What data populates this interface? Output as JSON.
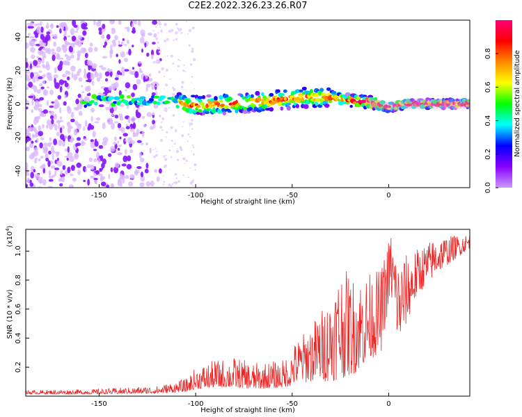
{
  "page": {
    "title": "C2E2.2022.326.23.26.R07"
  },
  "chart_data": [
    {
      "type": "heatmap",
      "title": "",
      "xlabel": "Height of straight line (km)",
      "ylabel": "Frequency (Hz)",
      "xlim": [
        -188,
        42
      ],
      "ylim": [
        -50,
        50
      ],
      "xticks": [
        -150,
        -100,
        -50,
        0
      ],
      "yticks": [
        -40,
        -20,
        0,
        20,
        40
      ],
      "colorbar": {
        "label": "Normalized spectral amplitude",
        "range": [
          0,
          1
        ],
        "ticks": [
          0.0,
          0.2,
          0.4,
          0.6,
          0.8
        ],
        "colormap": [
          "#cc99ff",
          "#8800ff",
          "#0000ff",
          "#00ffff",
          "#00ff00",
          "#ffff00",
          "#ff8800",
          "#ff0000",
          "#ff0077"
        ]
      },
      "grid": false,
      "description_of_content": "",
      "ridge": [
        {
          "x": -155,
          "y": 2
        },
        {
          "x": -140,
          "y": 2
        },
        {
          "x": -120,
          "y": 2
        },
        {
          "x": -110,
          "y": 1
        },
        {
          "x": -100,
          "y": -1
        },
        {
          "x": -80,
          "y": 0
        },
        {
          "x": -60,
          "y": 2
        },
        {
          "x": -40,
          "y": 4
        },
        {
          "x": -30,
          "y": 4
        },
        {
          "x": -20,
          "y": 2
        },
        {
          "x": -10,
          "y": 1
        },
        {
          "x": 0,
          "y": -2
        },
        {
          "x": 10,
          "y": 0
        },
        {
          "x": 42,
          "y": 0
        }
      ]
    },
    {
      "type": "line",
      "title": "",
      "xlabel": "Height of straight line (km)",
      "ylabel": "SNR (10 * v/v)",
      "yscale_label": "(x10",
      "yscale_exp": "4",
      "yscale_close": ")",
      "xlim": [
        -188,
        42
      ],
      "ylim": [
        0,
        1.15
      ],
      "xticks": [
        -150,
        -100,
        -50,
        0
      ],
      "yticks": [
        0.2,
        0.4,
        0.6,
        0.8,
        1.0
      ],
      "grid": false,
      "series": [
        {
          "name": "",
          "color": "#ee2222",
          "envelope": [
            {
              "x": -188,
              "low": 0.015,
              "high": 0.04
            },
            {
              "x": -150,
              "low": 0.015,
              "high": 0.05
            },
            {
              "x": -120,
              "low": 0.02,
              "high": 0.07
            },
            {
              "x": -105,
              "low": 0.03,
              "high": 0.12
            },
            {
              "x": -100,
              "low": 0.05,
              "high": 0.2
            },
            {
              "x": -90,
              "low": 0.06,
              "high": 0.25
            },
            {
              "x": -80,
              "low": 0.06,
              "high": 0.27
            },
            {
              "x": -70,
              "low": 0.05,
              "high": 0.23
            },
            {
              "x": -55,
              "low": 0.06,
              "high": 0.25
            },
            {
              "x": -48,
              "low": 0.08,
              "high": 0.38
            },
            {
              "x": -40,
              "low": 0.1,
              "high": 0.5
            },
            {
              "x": -30,
              "low": 0.1,
              "high": 0.7
            },
            {
              "x": -25,
              "low": 0.12,
              "high": 0.9
            },
            {
              "x": -18,
              "low": 0.15,
              "high": 0.82
            },
            {
              "x": -10,
              "low": 0.25,
              "high": 0.85
            },
            {
              "x": -4,
              "low": 0.3,
              "high": 0.88
            },
            {
              "x": 1,
              "low": 0.7,
              "high": 1.15
            },
            {
              "x": 5,
              "low": 0.35,
              "high": 0.95
            },
            {
              "x": 15,
              "low": 0.7,
              "high": 1.02
            },
            {
              "x": 25,
              "low": 0.85,
              "high": 1.1
            },
            {
              "x": 42,
              "low": 1.02,
              "high": 1.12
            }
          ]
        }
      ]
    }
  ]
}
